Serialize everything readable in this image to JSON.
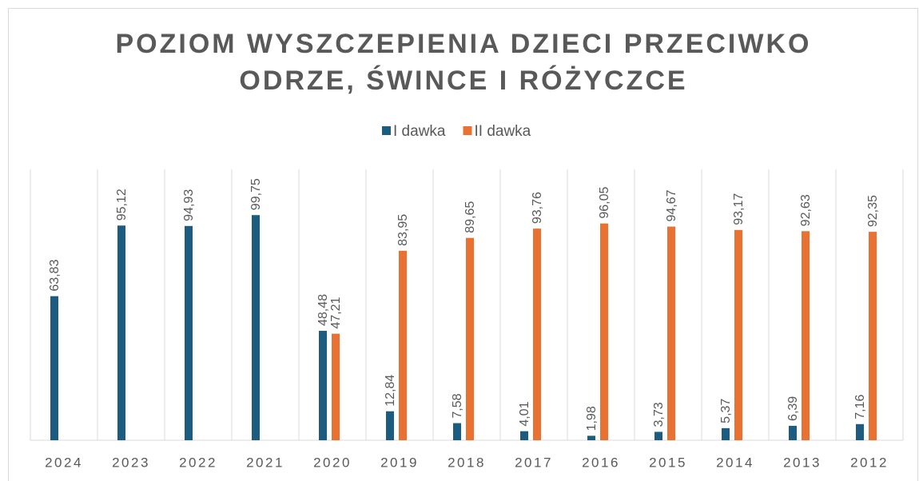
{
  "chart_data": {
    "type": "bar",
    "title": "POZIOM WYSZCZEPIENIA DZIECI PRZECIWKO",
    "subtitle": "ODRZE, ŚWINCE I RÓŻYCZCE",
    "categories": [
      "2024",
      "2023",
      "2022",
      "2021",
      "2020",
      "2019",
      "2018",
      "2017",
      "2016",
      "2015",
      "2014",
      "2013",
      "2012"
    ],
    "series": [
      {
        "name": "I dawka",
        "color": "#1b5c80",
        "values": [
          63.83,
          95.12,
          94.93,
          99.75,
          48.48,
          12.84,
          7.58,
          4.01,
          1.98,
          3.73,
          5.37,
          6.39,
          7.16
        ],
        "value_labels": [
          "63,83",
          "95,12",
          "94,93",
          "99,75",
          "48,48",
          "12,84",
          "7,58",
          "4,01",
          "1,98",
          "3,73",
          "5,37",
          "6,39",
          "7,16"
        ]
      },
      {
        "name": "II dawka",
        "color": "#e97132",
        "values": [
          null,
          null,
          null,
          null,
          47.21,
          83.95,
          89.65,
          93.76,
          96.05,
          94.67,
          93.17,
          92.63,
          92.35
        ],
        "value_labels": [
          null,
          null,
          null,
          null,
          "47,21",
          "83,95",
          "89,65",
          "93,76",
          "96,05",
          "94,67",
          "93,17",
          "92,63",
          "92,35"
        ]
      }
    ],
    "ylim": [
      0,
      120
    ],
    "legend": "top"
  }
}
